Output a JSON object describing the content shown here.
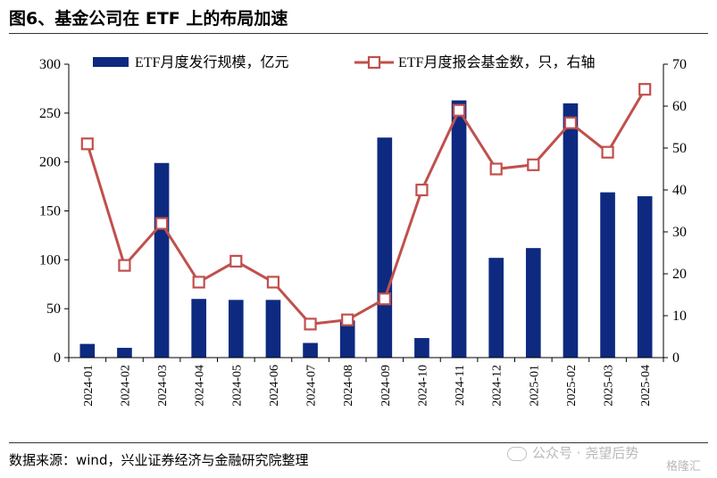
{
  "title": "图6、基金公司在 ETF 上的布局加速",
  "source": "数据来源：wind，兴业证券经济与金融研究院整理",
  "watermark": "公众号 · 尧望后势",
  "badge": "格隆汇",
  "chart_data": {
    "type": "bar+line",
    "categories": [
      "2024-01",
      "2024-02",
      "2024-03",
      "2024-04",
      "2024-05",
      "2024-06",
      "2024-07",
      "2024-08",
      "2024-09",
      "2024-10",
      "2024-11",
      "2024-12",
      "2025-01",
      "2025-02",
      "2025-03",
      "2025-04"
    ],
    "series": [
      {
        "name": "ETF月度发行规模，亿元",
        "type": "bar",
        "axis": "left",
        "color": "#0d2a80",
        "values": [
          14,
          10,
          199,
          60,
          59,
          59,
          15,
          38,
          225,
          20,
          263,
          102,
          112,
          260,
          169,
          165
        ]
      },
      {
        "name": "ETF月度报会基金数，只，右轴",
        "type": "line",
        "axis": "right",
        "color": "#c0504d",
        "values": [
          51,
          22,
          32,
          18,
          23,
          18,
          8,
          9,
          14,
          40,
          59,
          45,
          46,
          56,
          49,
          64
        ]
      }
    ],
    "y_left": {
      "min": 0,
      "max": 300,
      "ticks": [
        0,
        50,
        100,
        150,
        200,
        250,
        300
      ]
    },
    "y_right": {
      "min": 0,
      "max": 70,
      "ticks": [
        0,
        10,
        20,
        30,
        40,
        50,
        60,
        70
      ]
    },
    "legend": "top",
    "grid": false
  }
}
